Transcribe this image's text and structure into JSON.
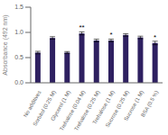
{
  "chart_data": {
    "type": "bar",
    "ylabel": "Absorbance (492 nm)",
    "categories": [
      "No additives",
      "Sorbitol (0.25 M)",
      "Glycerol (1 M)",
      "Trehalose (0.04 M)",
      "Trehalose (0.25 M)",
      "Trehalose (1 M)",
      "Sucrose (0.25 M)",
      "Sucrose (1 M)",
      "BSA (0.5 %)"
    ],
    "values": [
      0.6,
      0.89,
      0.6,
      0.98,
      0.84,
      0.84,
      0.95,
      0.9,
      0.79
    ],
    "errors": [
      0.025,
      0.025,
      0.02,
      0.03,
      0.025,
      0.025,
      0.025,
      0.025,
      0.035
    ],
    "significance": [
      null,
      null,
      null,
      "**",
      null,
      "*",
      null,
      null,
      "*"
    ],
    "color": "#2e2060",
    "ylim": [
      0.0,
      1.5
    ],
    "yticks": [
      {
        "value": 0,
        "label": "0.0"
      },
      {
        "value": 0.5,
        "label": "0.5"
      },
      {
        "value": 1,
        "label": "1.0"
      },
      {
        "value": 1.5,
        "label": "1.5"
      }
    ],
    "grid": false
  }
}
